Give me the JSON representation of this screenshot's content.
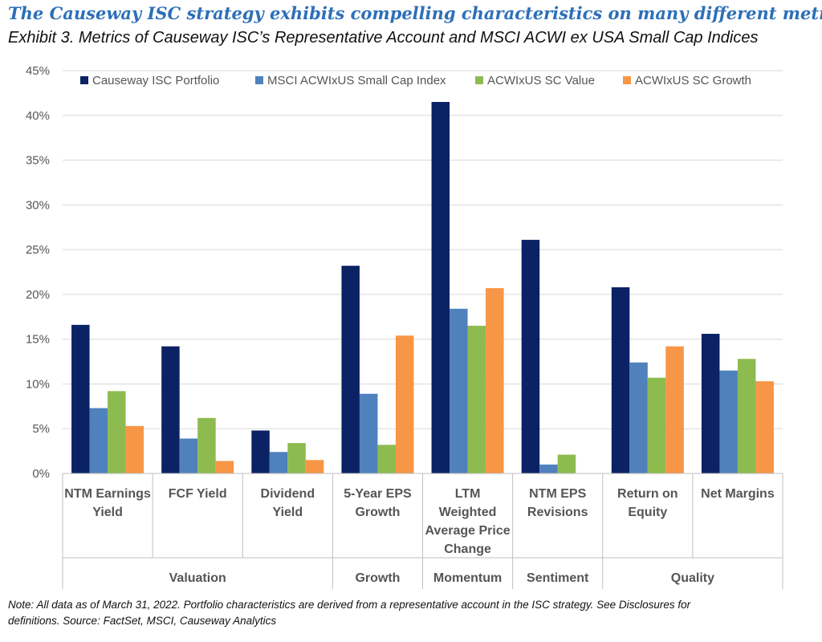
{
  "headline": "The Causeway ISC strategy exhibits compelling characteristics on many different metrics.",
  "exhibit_title": "Exhibit 3. Metrics of Causeway ISC’s Representative Account and MSCI ACWI ex USA Small Cap Indices",
  "note_line1": "Note: All data as of March 31, 2022.   Portfolio characteristics are derived from a representative account in the ISC strategy.  See Disclosures for",
  "note_line2": "definitions.  Source: FactSet, MSCI, Causeway Analytics",
  "colors": {
    "portfolio": "#0b2265",
    "index": "#4f81bd",
    "value": "#8ebb4f",
    "growth": "#f79646",
    "grid": "#d9d9d9",
    "axis": "#bfbfbf"
  },
  "chart_data": {
    "type": "bar",
    "ylim": [
      0,
      45
    ],
    "y_ticks": [
      0,
      5,
      10,
      15,
      20,
      25,
      30,
      35,
      40,
      45
    ],
    "y_tick_labels": [
      "0%",
      "5%",
      "10%",
      "15%",
      "20%",
      "25%",
      "30%",
      "35%",
      "40%",
      "45%"
    ],
    "grid": true,
    "legend_position": "top",
    "categories": [
      [
        "NTM Earnings",
        "Yield"
      ],
      [
        "FCF Yield"
      ],
      [
        "Dividend",
        "Yield"
      ],
      [
        "5-Year EPS",
        "Growth"
      ],
      [
        "LTM",
        "Weighted",
        "Average Price",
        "Change"
      ],
      [
        "NTM EPS",
        "Revisions"
      ],
      [
        "Return on",
        "Equity"
      ],
      [
        "Net Margins"
      ]
    ],
    "groups": [
      {
        "label": "Valuation",
        "categories": 3
      },
      {
        "label": "Growth",
        "categories": 1
      },
      {
        "label": "Momentum",
        "categories": 1
      },
      {
        "label": "Sentiment",
        "categories": 1
      },
      {
        "label": "Quality",
        "categories": 2
      }
    ],
    "series": [
      {
        "name": "Causeway ISC Portfolio",
        "color_key": "portfolio",
        "values": [
          16.6,
          14.2,
          4.8,
          23.2,
          41.5,
          26.1,
          20.8,
          15.6
        ]
      },
      {
        "name": "MSCI ACWIxUS Small Cap Index",
        "color_key": "index",
        "values": [
          7.3,
          3.9,
          2.4,
          8.9,
          18.4,
          1.0,
          12.4,
          11.5
        ]
      },
      {
        "name": "ACWIxUS SC Value",
        "color_key": "value",
        "values": [
          9.2,
          6.2,
          3.4,
          3.2,
          16.5,
          2.1,
          10.7,
          12.8
        ]
      },
      {
        "name": "ACWIxUS SC Growth",
        "color_key": "growth",
        "values": [
          5.3,
          1.4,
          1.5,
          15.4,
          20.7,
          null,
          14.2,
          10.3
        ]
      }
    ]
  }
}
